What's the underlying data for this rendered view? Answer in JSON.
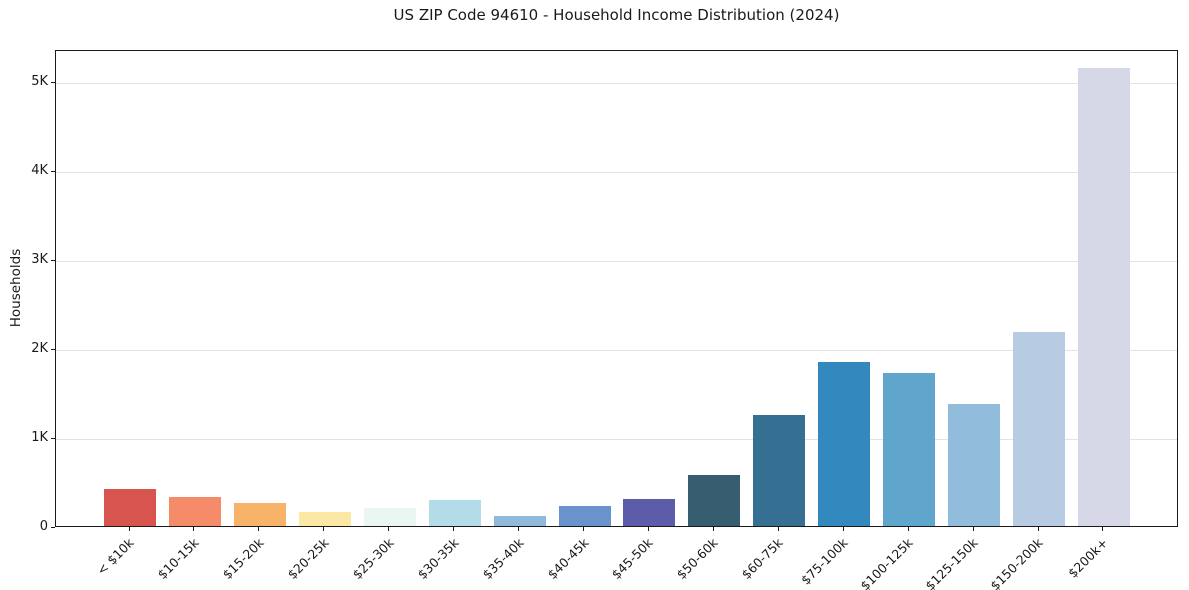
{
  "chart_data": {
    "type": "bar",
    "title": "US ZIP Code 94610 - Household Income Distribution (2024)",
    "xlabel": "",
    "ylabel": "Households",
    "categories": [
      "< $10k",
      "$10-15k",
      "$15-20k",
      "$20-25k",
      "$25-30k",
      "$30-35k",
      "$35-40k",
      "$40-45k",
      "$45-50k",
      "$50-60k",
      "$60-75k",
      "$75-100k",
      "$100-125k",
      "$125-150k",
      "$150-200k",
      "$200k+"
    ],
    "values": [
      415,
      325,
      260,
      155,
      200,
      290,
      110,
      225,
      300,
      570,
      1250,
      1840,
      1720,
      1370,
      2185,
      5155
    ],
    "bar_colors": [
      "#d8544f",
      "#f58b68",
      "#f7b469",
      "#fbe8a4",
      "#eaf6f2",
      "#b4dce8",
      "#8fbada",
      "#6b93cb",
      "#5d5ca9",
      "#365e70",
      "#357092",
      "#3389bd",
      "#5fa5cc",
      "#92bcdc",
      "#b7cbe2",
      "#d6d8e8"
    ],
    "ylim": [
      0,
      5365
    ],
    "yticks": [
      {
        "value": 0,
        "label": "0"
      },
      {
        "value": 1000,
        "label": "1K"
      },
      {
        "value": 2000,
        "label": "2K"
      },
      {
        "value": 3000,
        "label": "3K"
      },
      {
        "value": 4000,
        "label": "4K"
      },
      {
        "value": 5000,
        "label": "5K"
      }
    ],
    "grid": "horizontal",
    "legend": "none"
  },
  "colors": {
    "background": "#ffffff",
    "grid": "#e3e3e3",
    "spine": "#1a1a1a",
    "text": "#1a1a1a"
  }
}
